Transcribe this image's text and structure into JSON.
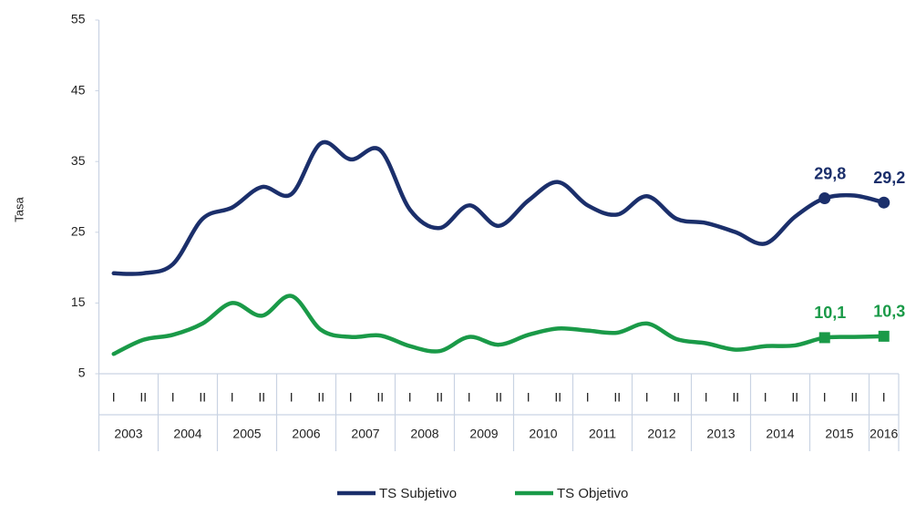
{
  "chart_data": {
    "type": "line",
    "y_label": "Tasa",
    "categories": [
      "I",
      "II",
      "I",
      "II",
      "I",
      "II",
      "I",
      "II",
      "I",
      "II",
      "I",
      "II",
      "I",
      "II",
      "I",
      "II",
      "I",
      "II",
      "I",
      "II",
      "I",
      "II",
      "I",
      "II",
      "I",
      "II",
      "I"
    ],
    "year_groups": [
      "2003",
      "2004",
      "2005",
      "2006",
      "2007",
      "2008",
      "2009",
      "2010",
      "2011",
      "2012",
      "2013",
      "2014",
      "2015",
      "2016"
    ],
    "ylim": [
      5,
      55
    ],
    "yticks": [
      5,
      15,
      25,
      35,
      45,
      55
    ],
    "grid": false,
    "legend": "bottom",
    "series": [
      {
        "name": "TS Subjetivo",
        "color": "#1b2f6b",
        "marker": "circle",
        "values": [
          19.2,
          19.2,
          20.5,
          26.9,
          28.5,
          31.4,
          30.4,
          37.6,
          35.3,
          36.6,
          28.2,
          25.6,
          28.8,
          25.9,
          29.5,
          32.1,
          28.8,
          27.5,
          30.1,
          26.9,
          26.3,
          25.0,
          23.4,
          27.2,
          29.8,
          30.2,
          29.2
        ],
        "value_labels": [
          null,
          null,
          null,
          null,
          null,
          null,
          null,
          null,
          null,
          null,
          null,
          null,
          null,
          null,
          null,
          null,
          null,
          null,
          null,
          null,
          null,
          null,
          null,
          null,
          "29,8",
          null,
          "29,2"
        ]
      },
      {
        "name": "TS Objetivo",
        "color": "#1a9a48",
        "marker": "square",
        "values": [
          7.8,
          9.8,
          10.5,
          12.1,
          15.0,
          13.2,
          16.0,
          11.2,
          10.2,
          10.4,
          8.9,
          8.2,
          10.2,
          9.1,
          10.5,
          11.4,
          11.1,
          10.8,
          12.1,
          9.9,
          9.3,
          8.4,
          8.9,
          9.0,
          10.1,
          10.2,
          10.3
        ],
        "value_labels": [
          null,
          null,
          null,
          null,
          null,
          null,
          null,
          null,
          null,
          null,
          null,
          null,
          null,
          null,
          null,
          null,
          null,
          null,
          null,
          null,
          null,
          null,
          null,
          null,
          "10,1",
          null,
          "10,3"
        ]
      }
    ]
  }
}
